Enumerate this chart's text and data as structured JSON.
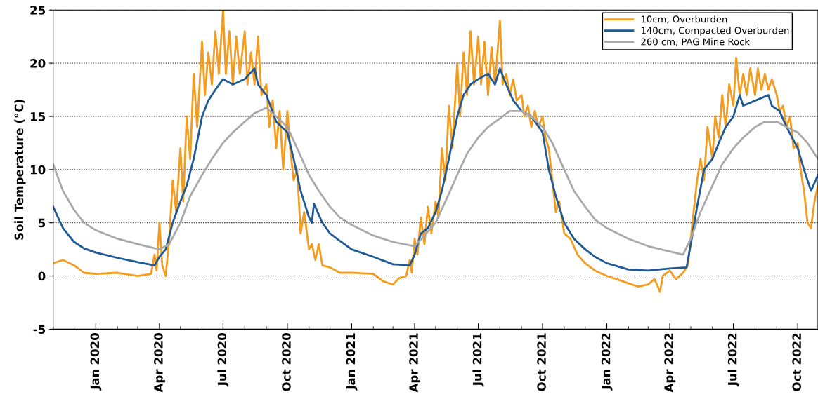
{
  "chart_data": {
    "type": "line",
    "ylabel": "Soil Temperature (°C)",
    "xlim": [
      "2019-11-01",
      "2022-10-30"
    ],
    "ylim": [
      -5,
      25
    ],
    "yticks": [
      -5,
      0,
      5,
      10,
      15,
      20,
      25
    ],
    "xticks": [
      {
        "value": "2020-01-01",
        "label": "Jan 2020"
      },
      {
        "value": "2020-04-01",
        "label": "Apr 2020"
      },
      {
        "value": "2020-07-01",
        "label": "Jul 2020"
      },
      {
        "value": "2020-10-01",
        "label": "Oct 2020"
      },
      {
        "value": "2021-01-01",
        "label": "Jan 2021"
      },
      {
        "value": "2021-04-01",
        "label": "Apr 2021"
      },
      {
        "value": "2021-07-01",
        "label": "Jul 2021"
      },
      {
        "value": "2021-10-01",
        "label": "Oct 2021"
      },
      {
        "value": "2022-01-01",
        "label": "Jan 2022"
      },
      {
        "value": "2022-04-01",
        "label": "Apr 2022"
      },
      {
        "value": "2022-07-01",
        "label": "Jul 2022"
      },
      {
        "value": "2022-10-01",
        "label": "Oct 2022"
      }
    ],
    "grid": "y",
    "legend": "top right",
    "marker": "none",
    "line_style": "solid",
    "series": [
      {
        "name": "10cm, Overburden",
        "color": "#f39c1f",
        "x": [
          "2019-11-01",
          "2019-11-15",
          "2019-12-01",
          "2019-12-15",
          "2020-01-01",
          "2020-02-01",
          "2020-03-01",
          "2020-03-20",
          "2020-03-25",
          "2020-03-28",
          "2020-04-01",
          "2020-04-05",
          "2020-04-10",
          "2020-04-15",
          "2020-04-20",
          "2020-04-25",
          "2020-05-01",
          "2020-05-05",
          "2020-05-10",
          "2020-05-15",
          "2020-05-20",
          "2020-05-25",
          "2020-06-01",
          "2020-06-05",
          "2020-06-10",
          "2020-06-15",
          "2020-06-20",
          "2020-06-25",
          "2020-07-01",
          "2020-07-05",
          "2020-07-10",
          "2020-07-15",
          "2020-07-20",
          "2020-07-25",
          "2020-08-01",
          "2020-08-05",
          "2020-08-10",
          "2020-08-15",
          "2020-08-20",
          "2020-08-25",
          "2020-09-01",
          "2020-09-05",
          "2020-09-10",
          "2020-09-15",
          "2020-09-20",
          "2020-09-25",
          "2020-10-01",
          "2020-10-05",
          "2020-10-10",
          "2020-10-15",
          "2020-10-20",
          "2020-10-25",
          "2020-11-01",
          "2020-11-05",
          "2020-11-10",
          "2020-11-15",
          "2020-11-20",
          "2020-12-01",
          "2020-12-15",
          "2021-01-01",
          "2021-02-01",
          "2021-02-15",
          "2021-03-01",
          "2021-03-10",
          "2021-03-20",
          "2021-03-25",
          "2021-03-28",
          "2021-04-01",
          "2021-04-05",
          "2021-04-10",
          "2021-04-15",
          "2021-04-20",
          "2021-04-25",
          "2021-05-01",
          "2021-05-05",
          "2021-05-10",
          "2021-05-15",
          "2021-05-20",
          "2021-05-25",
          "2021-06-01",
          "2021-06-05",
          "2021-06-10",
          "2021-06-15",
          "2021-06-20",
          "2021-06-25",
          "2021-07-01",
          "2021-07-05",
          "2021-07-10",
          "2021-07-15",
          "2021-07-20",
          "2021-07-25",
          "2021-08-01",
          "2021-08-05",
          "2021-08-10",
          "2021-08-15",
          "2021-08-20",
          "2021-08-25",
          "2021-09-01",
          "2021-09-05",
          "2021-09-10",
          "2021-09-15",
          "2021-09-20",
          "2021-09-25",
          "2021-10-01",
          "2021-10-05",
          "2021-10-10",
          "2021-10-15",
          "2021-10-20",
          "2021-10-25",
          "2021-11-01",
          "2021-11-10",
          "2021-11-20",
          "2021-12-01",
          "2021-12-15",
          "2022-01-01",
          "2022-01-15",
          "2022-02-01",
          "2022-02-15",
          "2022-03-01",
          "2022-03-10",
          "2022-03-15",
          "2022-03-18",
          "2022-03-22",
          "2022-04-01",
          "2022-04-10",
          "2022-04-20",
          "2022-04-27",
          "2022-05-05",
          "2022-05-10",
          "2022-05-15",
          "2022-05-20",
          "2022-05-25",
          "2022-06-01",
          "2022-06-05",
          "2022-06-10",
          "2022-06-15",
          "2022-06-20",
          "2022-06-25",
          "2022-07-01",
          "2022-07-05",
          "2022-07-10",
          "2022-07-15",
          "2022-07-20",
          "2022-07-25",
          "2022-08-01",
          "2022-08-05",
          "2022-08-10",
          "2022-08-15",
          "2022-08-20",
          "2022-08-25",
          "2022-09-01",
          "2022-09-05",
          "2022-09-10",
          "2022-09-15",
          "2022-09-20",
          "2022-09-25",
          "2022-10-01",
          "2022-10-05",
          "2022-10-10",
          "2022-10-15",
          "2022-10-20",
          "2022-10-25",
          "2022-10-30"
        ],
        "values": [
          1.2,
          1.5,
          1.0,
          0.3,
          0.2,
          0.3,
          0.0,
          0.2,
          2.0,
          0.5,
          5.0,
          1.0,
          0.0,
          3.5,
          9.0,
          6.0,
          12,
          7,
          15,
          11,
          19,
          14,
          22,
          17,
          21,
          18,
          23,
          19,
          25,
          19,
          23,
          18,
          22.5,
          19,
          23,
          18,
          21,
          18,
          22.5,
          17,
          18,
          14,
          16.5,
          12,
          15.5,
          10,
          15.5,
          12,
          9,
          10,
          4,
          6,
          2.5,
          3,
          1.5,
          3,
          1,
          0.8,
          0.3,
          0.3,
          0.2,
          -0.5,
          -0.8,
          -0.2,
          0.0,
          1.5,
          0.3,
          3.5,
          2.0,
          5.5,
          3,
          6.5,
          4,
          7,
          5.5,
          12,
          9,
          16,
          12,
          20,
          15,
          21,
          17,
          23,
          18,
          22.5,
          18,
          22,
          17,
          21.5,
          18,
          24,
          18,
          19,
          17,
          18.5,
          16.5,
          17,
          15,
          16,
          14,
          15.5,
          14,
          15,
          13,
          12,
          9,
          6,
          7,
          4,
          3.5,
          2,
          1.2,
          0.5,
          0.0,
          -0.3,
          -0.7,
          -1.0,
          -0.8,
          -0.3,
          -1.0,
          -1.5,
          0.0,
          0.5,
          -0.3,
          0.3,
          1.0,
          6,
          9,
          11,
          9,
          14,
          11,
          15,
          13,
          17,
          14,
          18,
          16,
          20.5,
          17,
          19,
          17,
          19.5,
          17,
          19.5,
          17.5,
          19,
          17.5,
          18.5,
          17,
          15.5,
          16,
          14,
          15,
          12,
          12.5,
          10,
          8,
          5,
          4.5,
          7,
          8.5
        ]
      },
      {
        "name": "140cm, Compacted Overburden",
        "color": "#1f5a96",
        "x": [
          "2019-11-01",
          "2019-11-15",
          "2019-12-01",
          "2019-12-15",
          "2020-01-01",
          "2020-02-01",
          "2020-03-01",
          "2020-03-25",
          "2020-04-01",
          "2020-04-10",
          "2020-04-20",
          "2020-05-01",
          "2020-05-10",
          "2020-05-20",
          "2020-06-01",
          "2020-06-10",
          "2020-06-20",
          "2020-07-01",
          "2020-07-15",
          "2020-08-01",
          "2020-08-15",
          "2020-08-20",
          "2020-09-01",
          "2020-09-15",
          "2020-10-01",
          "2020-10-10",
          "2020-10-20",
          "2020-11-01",
          "2020-11-05",
          "2020-11-08",
          "2020-11-20",
          "2020-12-01",
          "2020-12-15",
          "2021-01-01",
          "2021-02-01",
          "2021-03-01",
          "2021-03-25",
          "2021-04-01",
          "2021-04-10",
          "2021-04-20",
          "2021-05-01",
          "2021-05-10",
          "2021-05-20",
          "2021-06-01",
          "2021-06-10",
          "2021-06-20",
          "2021-07-01",
          "2021-07-15",
          "2021-07-25",
          "2021-08-01",
          "2021-08-10",
          "2021-08-20",
          "2021-09-01",
          "2021-09-15",
          "2021-10-01",
          "2021-10-10",
          "2021-10-20",
          "2021-11-01",
          "2021-11-15",
          "2021-12-01",
          "2021-12-15",
          "2022-01-01",
          "2022-02-01",
          "2022-03-01",
          "2022-04-01",
          "2022-04-25",
          "2022-05-01",
          "2022-05-10",
          "2022-05-20",
          "2022-06-01",
          "2022-06-10",
          "2022-06-20",
          "2022-07-01",
          "2022-07-10",
          "2022-07-15",
          "2022-08-20",
          "2022-08-25",
          "2022-09-05",
          "2022-09-15",
          "2022-10-01",
          "2022-10-10",
          "2022-10-20",
          "2022-10-30"
        ],
        "values": [
          6.5,
          4.5,
          3.2,
          2.6,
          2.2,
          1.7,
          1.3,
          1.0,
          1.8,
          2.5,
          5,
          7,
          8.5,
          11,
          15,
          16.5,
          17.5,
          18.5,
          18,
          18.5,
          19.5,
          18,
          17,
          14.5,
          13.5,
          11,
          8,
          5.5,
          5.0,
          6.8,
          5,
          4,
          3.3,
          2.5,
          1.8,
          1.1,
          1.0,
          2,
          4,
          4.5,
          6,
          8,
          11,
          15,
          17,
          18,
          18.5,
          19,
          18,
          19.5,
          18,
          16.5,
          15.5,
          15,
          13.5,
          10,
          7.5,
          5,
          3.5,
          2.5,
          1.8,
          1.2,
          0.6,
          0.5,
          0.7,
          0.8,
          3,
          6.5,
          10,
          11,
          12.5,
          14,
          15,
          17,
          16,
          17,
          16,
          15.5,
          14,
          12,
          10,
          8,
          9.5
        ]
      },
      {
        "name": "260 cm, PAG Mine Rock",
        "color": "#a9a9a9",
        "x": [
          "2019-11-01",
          "2019-11-15",
          "2019-12-01",
          "2019-12-15",
          "2020-01-01",
          "2020-02-01",
          "2020-03-01",
          "2020-04-01",
          "2020-04-15",
          "2020-05-01",
          "2020-05-15",
          "2020-06-01",
          "2020-06-15",
          "2020-07-01",
          "2020-07-15",
          "2020-08-01",
          "2020-08-15",
          "2020-09-01",
          "2020-09-15",
          "2020-10-01",
          "2020-10-15",
          "2020-11-01",
          "2020-11-15",
          "2020-12-01",
          "2020-12-15",
          "2021-01-01",
          "2021-02-01",
          "2021-03-01",
          "2021-04-01",
          "2021-04-15",
          "2021-05-01",
          "2021-05-15",
          "2021-06-01",
          "2021-06-15",
          "2021-07-01",
          "2021-07-15",
          "2021-08-01",
          "2021-08-15",
          "2021-09-01",
          "2021-09-15",
          "2021-10-01",
          "2021-10-15",
          "2021-11-01",
          "2021-11-15",
          "2021-12-01",
          "2021-12-15",
          "2022-01-01",
          "2022-02-01",
          "2022-03-01",
          "2022-04-01",
          "2022-04-20",
          "2022-05-01",
          "2022-05-15",
          "2022-06-01",
          "2022-06-15",
          "2022-07-01",
          "2022-07-15",
          "2022-08-01",
          "2022-08-15",
          "2022-09-01",
          "2022-09-15",
          "2022-10-01",
          "2022-10-15",
          "2022-10-30"
        ],
        "values": [
          10.5,
          8,
          6.2,
          5,
          4.3,
          3.5,
          3.0,
          2.5,
          3.0,
          5,
          7.5,
          9.5,
          11,
          12.5,
          13.5,
          14.5,
          15.3,
          15.8,
          15,
          14,
          12,
          9.5,
          8,
          6.5,
          5.5,
          4.8,
          3.8,
          3.2,
          2.8,
          3.8,
          5,
          7,
          9.5,
          11.5,
          13,
          14,
          14.8,
          15.5,
          15.5,
          15,
          14,
          12.5,
          10,
          8,
          6.5,
          5.3,
          4.5,
          3.5,
          2.8,
          2.3,
          2.0,
          3.5,
          6,
          8.5,
          10.5,
          12,
          13,
          14,
          14.5,
          14.5,
          14,
          13.5,
          12.5,
          11
        ]
      }
    ]
  }
}
